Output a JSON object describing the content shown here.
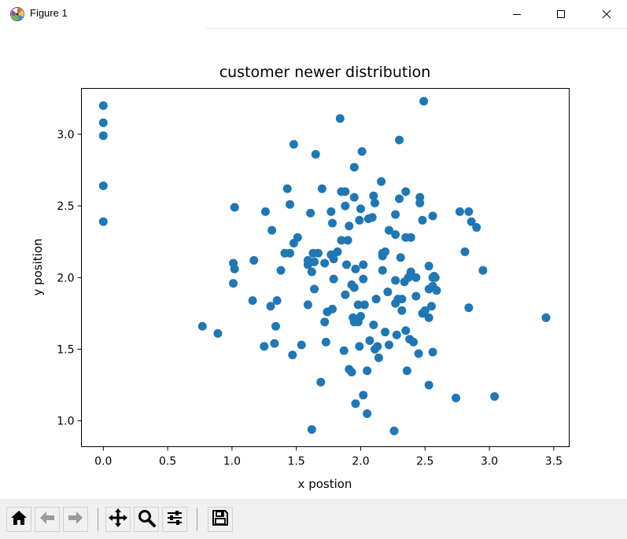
{
  "window": {
    "title": "Figure 1",
    "icons": {
      "app": "matplotlib-icon",
      "minimize": "minimize-icon",
      "maximize": "maximize-icon",
      "close": "close-icon"
    }
  },
  "toolbar": {
    "buttons": [
      {
        "name": "home-button",
        "icon": "home-icon"
      },
      {
        "name": "back-button",
        "icon": "arrow-left-icon"
      },
      {
        "name": "forward-button",
        "icon": "arrow-right-icon"
      },
      {
        "name": "pan-button",
        "icon": "move-icon"
      },
      {
        "name": "zoom-button",
        "icon": "magnifier-icon"
      },
      {
        "name": "configure-subplots-button",
        "icon": "sliders-icon"
      },
      {
        "name": "save-button",
        "icon": "floppy-disk-icon"
      }
    ]
  },
  "chart_data": {
    "type": "scatter",
    "title": "customer newer distribution",
    "xlabel": "x postion",
    "ylabel": "y position",
    "xlim": [
      -0.17,
      3.62
    ],
    "ylim": [
      0.82,
      3.32
    ],
    "xticks": [
      0.0,
      0.5,
      1.0,
      1.5,
      2.0,
      2.5,
      3.0,
      3.5
    ],
    "xtick_labels": [
      "0.0",
      "0.5",
      "1.0",
      "1.5",
      "2.0",
      "2.5",
      "3.0",
      "3.5"
    ],
    "yticks": [
      1.0,
      1.5,
      2.0,
      2.5,
      3.0
    ],
    "ytick_labels": [
      "1.0",
      "1.5",
      "2.0",
      "2.5",
      "3.0"
    ],
    "grid": false,
    "marker_color": "#1f77b4",
    "points": [
      [
        0.0,
        3.2
      ],
      [
        0.0,
        3.08
      ],
      [
        0.0,
        2.99
      ],
      [
        0.0,
        2.64
      ],
      [
        0.0,
        2.39
      ],
      [
        2.49,
        3.23
      ],
      [
        1.84,
        3.11
      ],
      [
        2.3,
        2.96
      ],
      [
        1.48,
        2.93
      ],
      [
        2.01,
        2.88
      ],
      [
        1.65,
        2.86
      ],
      [
        1.95,
        2.77
      ],
      [
        2.16,
        2.67
      ],
      [
        1.43,
        2.62
      ],
      [
        1.7,
        2.62
      ],
      [
        1.85,
        2.6
      ],
      [
        2.35,
        2.6
      ],
      [
        1.88,
        2.6
      ],
      [
        2.1,
        2.57
      ],
      [
        1.95,
        2.56
      ],
      [
        2.46,
        2.56
      ],
      [
        2.3,
        2.55
      ],
      [
        2.11,
        2.52
      ],
      [
        1.45,
        2.51
      ],
      [
        2.46,
        2.52
      ],
      [
        1.88,
        2.5
      ],
      [
        1.02,
        2.49
      ],
      [
        2.0,
        2.48
      ],
      [
        2.77,
        2.46
      ],
      [
        1.26,
        2.46
      ],
      [
        1.61,
        2.45
      ],
      [
        1.77,
        2.46
      ],
      [
        2.84,
        2.46
      ],
      [
        2.56,
        2.43
      ],
      [
        2.27,
        2.44
      ],
      [
        2.06,
        2.41
      ],
      [
        2.09,
        2.42
      ],
      [
        2.48,
        2.4
      ],
      [
        1.99,
        2.4
      ],
      [
        2.86,
        2.39
      ],
      [
        1.91,
        2.36
      ],
      [
        1.78,
        2.38
      ],
      [
        2.9,
        2.35
      ],
      [
        2.22,
        2.33
      ],
      [
        2.27,
        2.3
      ],
      [
        1.31,
        2.33
      ],
      [
        1.51,
        2.28
      ],
      [
        2.39,
        2.28
      ],
      [
        2.35,
        2.28
      ],
      [
        1.48,
        2.24
      ],
      [
        1.85,
        2.26
      ],
      [
        1.9,
        2.26
      ],
      [
        2.19,
        2.18
      ],
      [
        2.81,
        2.18
      ],
      [
        1.82,
        2.18
      ],
      [
        1.41,
        2.17
      ],
      [
        1.45,
        2.17
      ],
      [
        1.67,
        2.17
      ],
      [
        1.77,
        2.16
      ],
      [
        1.63,
        2.17
      ],
      [
        2.17,
        2.17
      ],
      [
        2.17,
        2.15
      ],
      [
        2.31,
        2.14
      ],
      [
        1.17,
        2.12
      ],
      [
        1.59,
        2.12
      ],
      [
        1.79,
        2.13
      ],
      [
        1.64,
        2.11
      ],
      [
        1.01,
        2.1
      ],
      [
        1.59,
        2.09
      ],
      [
        1.72,
        2.1
      ],
      [
        2.02,
        2.09
      ],
      [
        1.89,
        2.09
      ],
      [
        2.53,
        2.08
      ],
      [
        2.39,
        2.04
      ],
      [
        1.96,
        2.06
      ],
      [
        1.02,
        2.06
      ],
      [
        2.95,
        2.05
      ],
      [
        1.38,
        2.05
      ],
      [
        2.17,
        2.05
      ],
      [
        2.57,
        2.01
      ],
      [
        1.62,
        2.04
      ],
      [
        2.37,
        2.0
      ],
      [
        2.56,
        2.0
      ],
      [
        2.43,
        2.0
      ],
      [
        2.58,
        2.0
      ],
      [
        2.27,
        1.98
      ],
      [
        2.02,
        1.99
      ],
      [
        1.79,
        1.99
      ],
      [
        2.34,
        1.97
      ],
      [
        1.01,
        1.96
      ],
      [
        1.93,
        1.95
      ],
      [
        2.56,
        1.94
      ],
      [
        1.95,
        1.93
      ],
      [
        2.53,
        1.92
      ],
      [
        2.59,
        1.91
      ],
      [
        2.21,
        1.9
      ],
      [
        1.64,
        1.92
      ],
      [
        1.88,
        1.88
      ],
      [
        2.12,
        1.85
      ],
      [
        2.29,
        1.85
      ],
      [
        1.16,
        1.84
      ],
      [
        1.35,
        1.84
      ],
      [
        2.32,
        1.85
      ],
      [
        1.59,
        1.81
      ],
      [
        1.98,
        1.81
      ],
      [
        2.27,
        1.82
      ],
      [
        2.03,
        1.81
      ],
      [
        2.55,
        1.8
      ],
      [
        2.43,
        1.87
      ],
      [
        1.3,
        1.8
      ],
      [
        2.84,
        1.79
      ],
      [
        1.78,
        1.78
      ],
      [
        2.32,
        1.77
      ],
      [
        2.5,
        1.77
      ],
      [
        1.74,
        1.76
      ],
      [
        2.48,
        1.75
      ],
      [
        1.94,
        1.72
      ],
      [
        2.0,
        1.73
      ],
      [
        2.53,
        1.72
      ],
      [
        3.44,
        1.72
      ],
      [
        1.72,
        1.69
      ],
      [
        2.1,
        1.67
      ],
      [
        1.98,
        1.69
      ],
      [
        1.95,
        1.69
      ],
      [
        0.77,
        1.66
      ],
      [
        1.34,
        1.66
      ],
      [
        2.35,
        1.63
      ],
      [
        0.89,
        1.61
      ],
      [
        2.19,
        1.62
      ],
      [
        2.28,
        1.6
      ],
      [
        2.38,
        1.57
      ],
      [
        1.54,
        1.53
      ],
      [
        1.73,
        1.55
      ],
      [
        2.07,
        1.56
      ],
      [
        2.22,
        1.53
      ],
      [
        1.33,
        1.54
      ],
      [
        2.41,
        1.55
      ],
      [
        1.25,
        1.52
      ],
      [
        1.99,
        1.52
      ],
      [
        2.13,
        1.52
      ],
      [
        2.11,
        1.5
      ],
      [
        1.87,
        1.49
      ],
      [
        2.56,
        1.48
      ],
      [
        2.45,
        1.47
      ],
      [
        1.47,
        1.46
      ],
      [
        2.14,
        1.44
      ],
      [
        1.91,
        1.36
      ],
      [
        2.36,
        1.35
      ],
      [
        1.93,
        1.34
      ],
      [
        2.05,
        1.35
      ],
      [
        1.69,
        1.27
      ],
      [
        2.53,
        1.25
      ],
      [
        2.02,
        1.18
      ],
      [
        3.04,
        1.17
      ],
      [
        2.74,
        1.16
      ],
      [
        1.96,
        1.12
      ],
      [
        2.05,
        1.05
      ],
      [
        1.62,
        0.94
      ],
      [
        2.26,
        0.93
      ]
    ]
  }
}
